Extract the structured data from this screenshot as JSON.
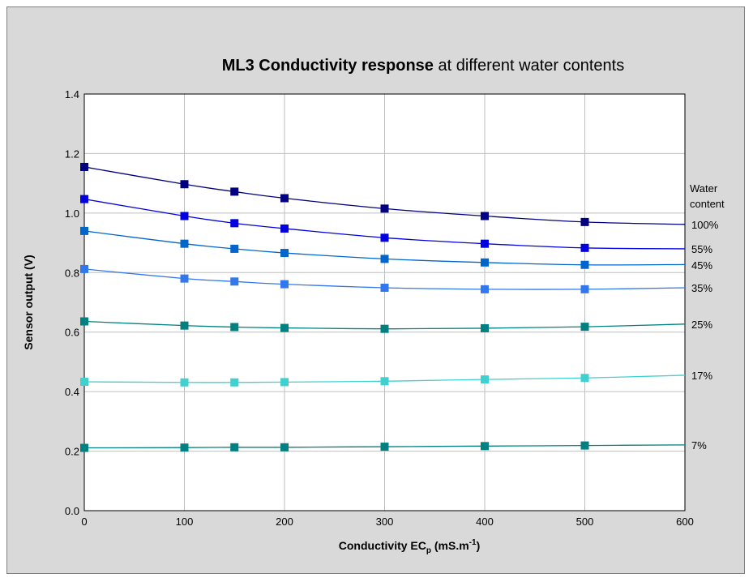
{
  "chart_data": {
    "type": "line",
    "title_bold": "ML3 Conductivity response",
    "title_rest": " at different water contents",
    "xlabel_main": "Conductivity EC",
    "xlabel_sub": "p",
    "xlabel_unit": " (mS.m",
    "xlabel_sup": "-1",
    "xlabel_close": ")",
    "ylabel": "Sensor output (V)",
    "xlim": [
      0,
      600
    ],
    "ylim": [
      0,
      1.4
    ],
    "xticks": [
      0,
      100,
      200,
      300,
      400,
      500,
      600
    ],
    "yticks": [
      "0.0",
      "0.2",
      "0.4",
      "0.6",
      "0.8",
      "1.0",
      "1.2",
      "1.4"
    ],
    "grid": true,
    "legend_header": [
      "Water",
      "content"
    ],
    "x": [
      0,
      100,
      150,
      200,
      300,
      400,
      500
    ],
    "series": [
      {
        "name": "100%",
        "color": "#000080",
        "values": [
          1.155,
          1.097,
          1.072,
          1.05,
          1.015,
          0.99,
          0.97
        ],
        "end": 0.962
      },
      {
        "name": "55%",
        "color": "#0000e0",
        "values": [
          1.047,
          0.99,
          0.966,
          0.948,
          0.917,
          0.897,
          0.883
        ],
        "end": 0.88
      },
      {
        "name": "45%",
        "color": "#0066cc",
        "values": [
          0.94,
          0.897,
          0.88,
          0.866,
          0.846,
          0.834,
          0.826
        ],
        "end": 0.827
      },
      {
        "name": "35%",
        "color": "#3377ee",
        "values": [
          0.812,
          0.78,
          0.77,
          0.761,
          0.749,
          0.744,
          0.744
        ],
        "end": 0.749
      },
      {
        "name": "25%",
        "color": "#008080",
        "values": [
          0.636,
          0.622,
          0.617,
          0.614,
          0.611,
          0.613,
          0.618
        ],
        "end": 0.627
      },
      {
        "name": "17%",
        "color": "#40d0d0",
        "values": [
          0.433,
          0.431,
          0.431,
          0.432,
          0.435,
          0.441,
          0.446
        ],
        "end": 0.455
      },
      {
        "name": "7%",
        "color": "#008080",
        "values": [
          0.211,
          0.212,
          0.213,
          0.213,
          0.215,
          0.217,
          0.219
        ],
        "end": 0.221
      }
    ]
  }
}
